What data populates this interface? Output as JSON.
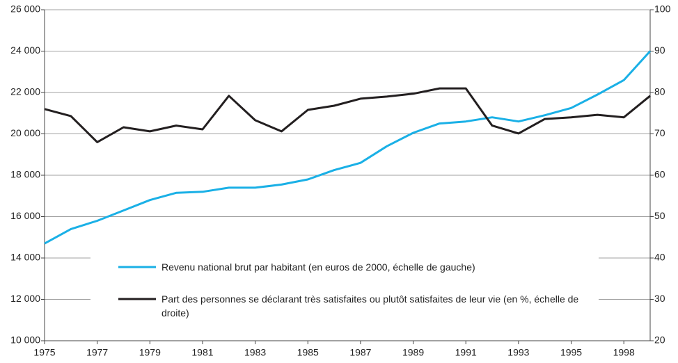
{
  "chart_data": {
    "type": "line",
    "categories": [
      "1975",
      null,
      "1977",
      null,
      "1979",
      null,
      "1981",
      null,
      "1983",
      null,
      "1985",
      null,
      "1987",
      null,
      "1989",
      null,
      "1991",
      null,
      "1993",
      null,
      "1995",
      null,
      "1998",
      null
    ],
    "series": [
      {
        "name": "Revenu national brut par habitant (en euros de 2000, échelle de gauche)",
        "color": "#1ab0e6",
        "axis": "y",
        "values": [
          14700,
          15400,
          15800,
          16300,
          16800,
          17150,
          17200,
          17400,
          17400,
          17550,
          17800,
          18250,
          18600,
          19400,
          20050,
          20500,
          20600,
          20800,
          20600,
          20900,
          21250,
          21900,
          22600,
          24000
        ]
      },
      {
        "name": "Part des personnes se déclarant très satisfaites ou plutôt satisfaites de leur vie (en %, échelle de droite)",
        "color": "#231f20",
        "axis": "y2",
        "values": [
          76,
          74.3,
          68,
          71.6,
          70.6,
          72,
          71.1,
          79.2,
          73.3,
          70.6,
          75.8,
          76.8,
          78.5,
          79,
          79.7,
          81,
          81,
          72,
          70.1,
          73.6,
          74,
          74.6,
          74,
          79.2
        ]
      }
    ],
    "ylim": [
      10000,
      26000
    ],
    "yticks": [
      {
        "value": 10000,
        "label": "10 000"
      },
      {
        "value": 12000,
        "label": "12 000"
      },
      {
        "value": 14000,
        "label": "14 000"
      },
      {
        "value": 16000,
        "label": "16 000"
      },
      {
        "value": 18000,
        "label": "18 000"
      },
      {
        "value": 20000,
        "label": "20 000"
      },
      {
        "value": 22000,
        "label": "22 000"
      },
      {
        "value": 24000,
        "label": "24 000"
      },
      {
        "value": 26000,
        "label": "26 000"
      }
    ],
    "y2lim": [
      20,
      100
    ],
    "y2ticks": [
      20,
      30,
      40,
      50,
      60,
      70,
      80,
      90,
      100
    ],
    "grid": true
  }
}
